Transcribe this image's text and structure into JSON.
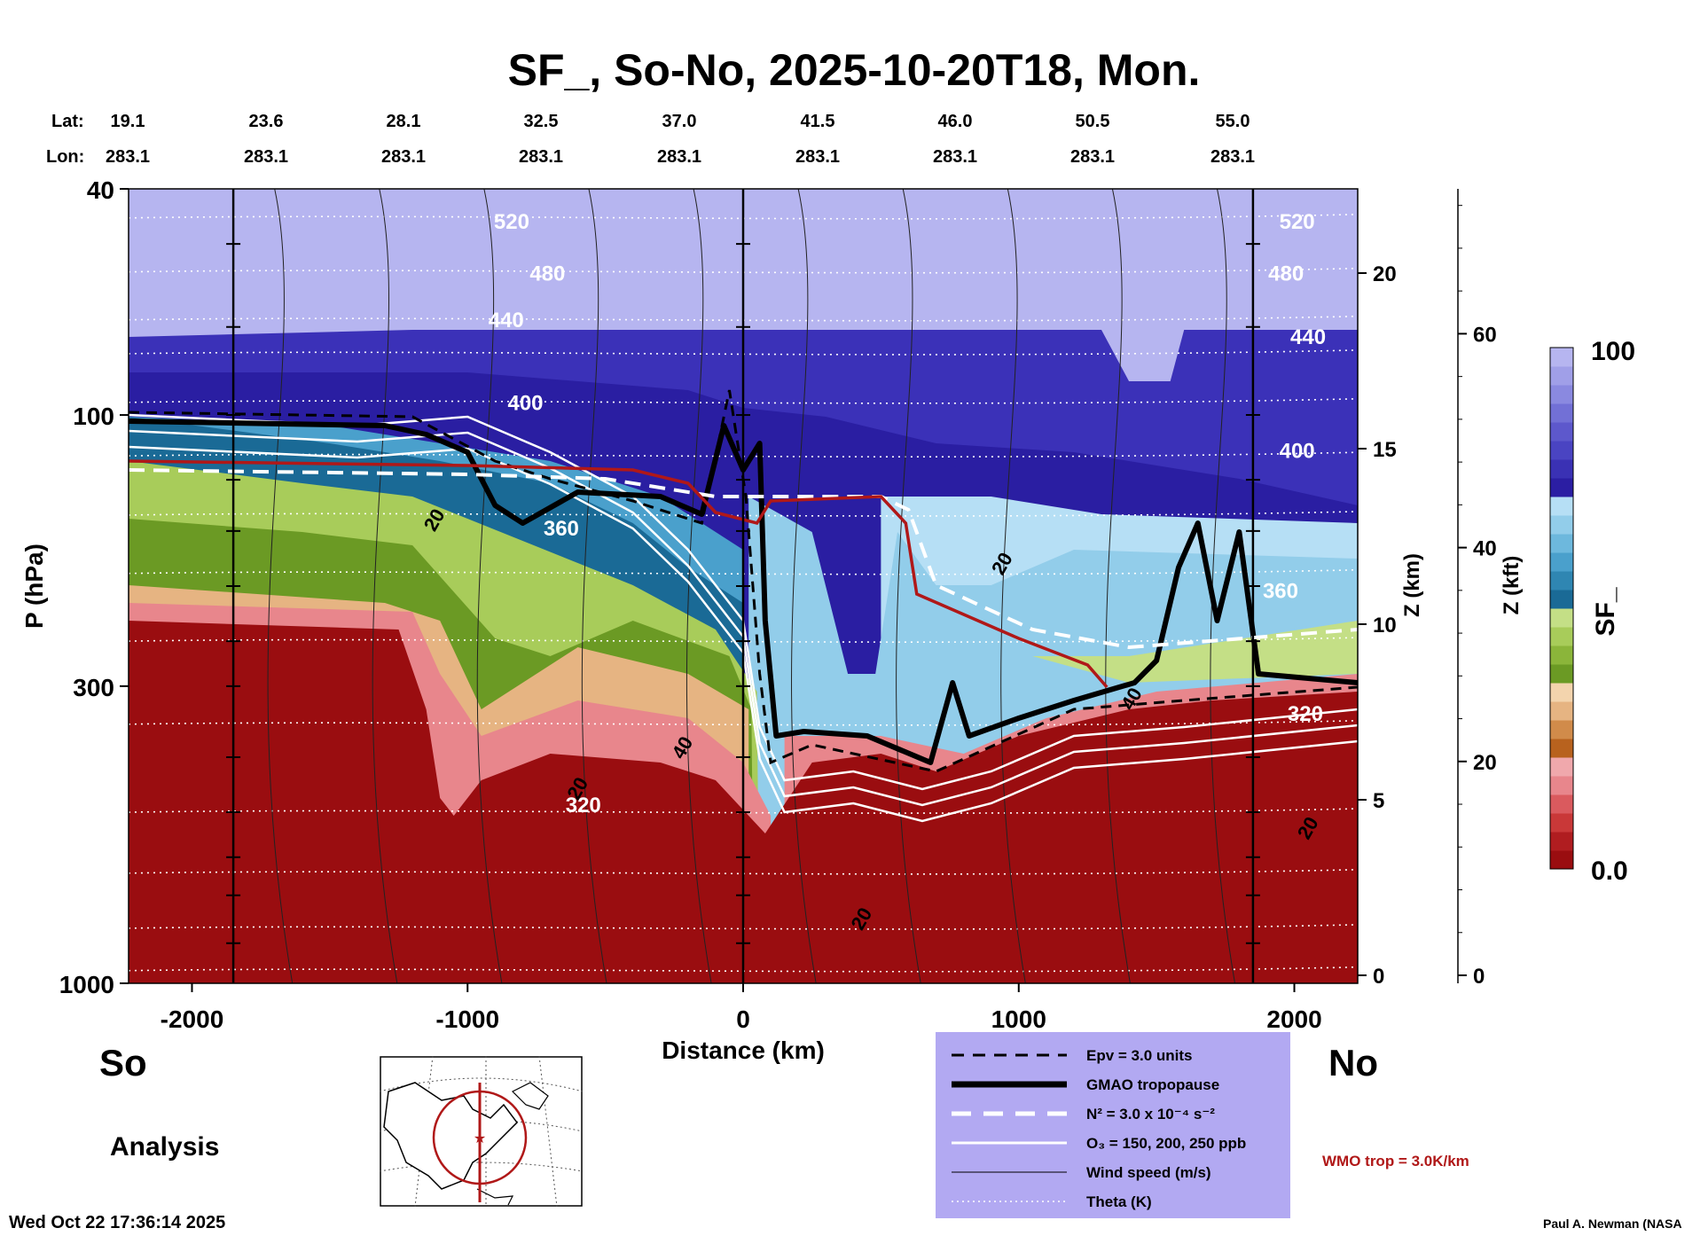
{
  "chart_data": {
    "type": "heatmap",
    "title": "SF_, So-No, 2025-10-20T18, Mon.",
    "xlabel": "Distance (km)",
    "ylabel": "P (hPa)",
    "y2label": "Z (km)",
    "y3label": "Z (kft)",
    "xlim": [
      -2230,
      2230
    ],
    "ylim": [
      1000,
      40
    ],
    "x_ticks": [
      "-2000",
      "-1000",
      "0",
      "1000",
      "2000"
    ],
    "x_tick_values": [
      -2000,
      -1000,
      0,
      1000,
      2000
    ],
    "y_ticks": [
      "40",
      "100",
      "300",
      "1000"
    ],
    "y_tick_values": [
      40,
      100,
      300,
      1000
    ],
    "z_km_ticks": [
      "20",
      "15",
      "10",
      "5",
      "0"
    ],
    "z_km_values": [
      20,
      15,
      10,
      5,
      0
    ],
    "z_kft_ticks": [
      "60",
      "40",
      "20",
      "0"
    ],
    "z_kft_values": [
      60,
      40,
      20,
      0
    ],
    "lat_label": "Lat:",
    "lon_label": "Lon:",
    "lats": [
      "19.1",
      "23.6",
      "28.1",
      "32.5",
      "37.0",
      "41.5",
      "46.0",
      "50.5",
      "55.0"
    ],
    "lons": [
      "283.1",
      "283.1",
      "283.1",
      "283.1",
      "283.1",
      "283.1",
      "283.1",
      "283.1",
      "283.1"
    ],
    "station_lines_km": [
      -1850,
      0,
      1850
    ],
    "theta_labels": [
      {
        "text": "520",
        "x": -840,
        "p": 47
      },
      {
        "text": "480",
        "x": -710,
        "p": 58
      },
      {
        "text": "440",
        "x": -860,
        "p": 70
      },
      {
        "text": "400",
        "x": -790,
        "p": 98
      },
      {
        "text": "360",
        "x": -660,
        "p": 163
      },
      {
        "text": "320",
        "x": -580,
        "p": 500
      },
      {
        "text": "520",
        "x": 2010,
        "p": 47
      },
      {
        "text": "480",
        "x": 1970,
        "p": 58
      },
      {
        "text": "440",
        "x": 2050,
        "p": 75
      },
      {
        "text": "400",
        "x": 2010,
        "p": 119
      },
      {
        "text": "360",
        "x": 1950,
        "p": 210
      },
      {
        "text": "320",
        "x": 2040,
        "p": 345
      }
    ],
    "wind_labels": [
      {
        "text": "20",
        "x": -1100,
        "p": 155
      },
      {
        "text": "40",
        "x": -200,
        "p": 390
      },
      {
        "text": "20",
        "x": -580,
        "p": 460
      },
      {
        "text": "20",
        "x": 960,
        "p": 185
      },
      {
        "text": "40",
        "x": 1430,
        "p": 320
      },
      {
        "text": "20",
        "x": 2070,
        "p": 540
      },
      {
        "text": "20",
        "x": 450,
        "p": 780
      }
    ],
    "colorbar": {
      "label": "SF_",
      "min": "0.0",
      "max": "100",
      "colors": [
        "#9a0d10",
        "#b01d20",
        "#c93838",
        "#da5a5e",
        "#e8868c",
        "#f0a8ac",
        "#b8621e",
        "#d18b4a",
        "#e6b482",
        "#f3d4ad",
        "#6b9a24",
        "#8bb53a",
        "#a8cc5a",
        "#c4df86",
        "#1a6a96",
        "#2f86b2",
        "#4aa0cc",
        "#6db8dd",
        "#92cdea",
        "#b6dff5",
        "#2b1ea3",
        "#3a31b4",
        "#4a44c2",
        "#5d58cc",
        "#7270d6",
        "#8a89e0",
        "#a09fe8",
        "#b6b5f0"
      ]
    }
  },
  "labels": {
    "so": "So",
    "no": "No",
    "analysis": "Analysis",
    "timestamp": "Wed Oct 22 17:36:14 2025",
    "credit": "Paul A. Newman (NASA",
    "wmo": "WMO trop = 3.0K/km"
  },
  "legend": [
    {
      "text": "Epv = 3.0 units",
      "style": "dashed-black"
    },
    {
      "text": "GMAO tropopause",
      "style": "thick-black"
    },
    {
      "text": "N² = 3.0 x 10⁻⁴ s⁻²",
      "style": "dashed-white"
    },
    {
      "text": "O₃ = 150, 200, 250 ppb",
      "style": "white"
    },
    {
      "text": "Wind speed (m/s)",
      "style": "thin-black"
    },
    {
      "text": "Theta (K)",
      "style": "dotted-white"
    }
  ],
  "colors": {
    "legend_bg": "#b2a9f2",
    "wmo_red": "#b01818",
    "stratosphere": "#b6b5f0",
    "troposphere": "#9a0d10"
  }
}
